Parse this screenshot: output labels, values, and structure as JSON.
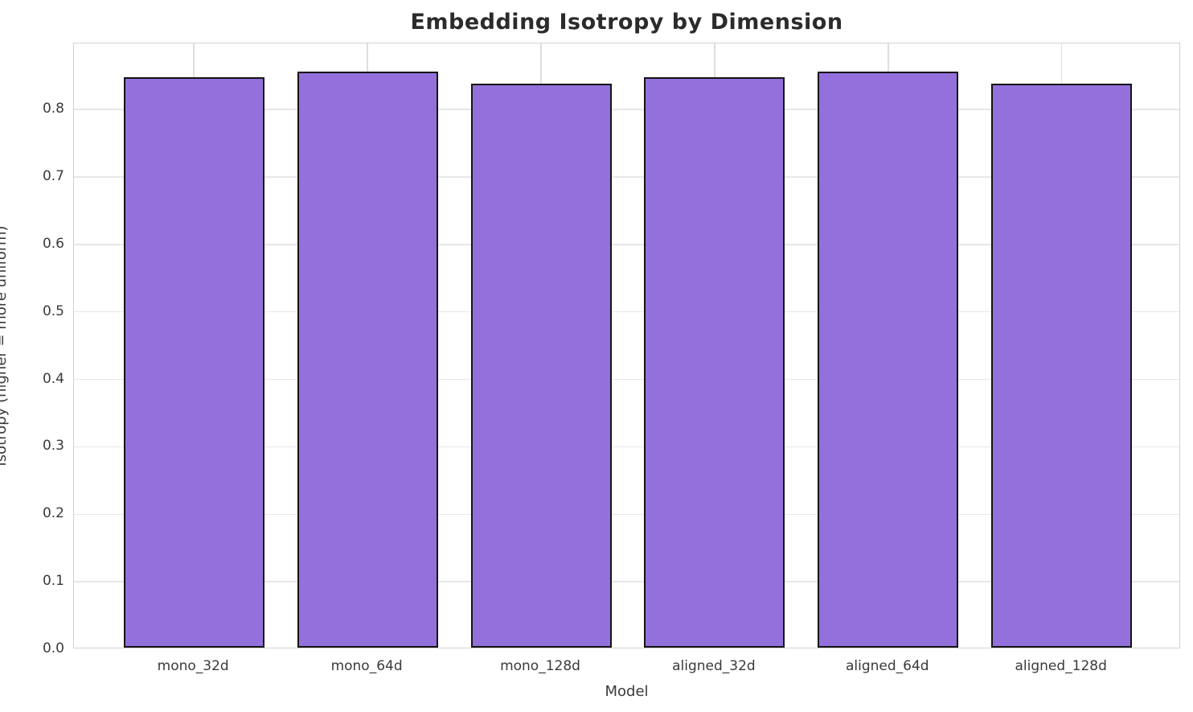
{
  "chart_data": {
    "type": "bar",
    "title": "Embedding Isotropy by Dimension",
    "xlabel": "Model",
    "ylabel": "Isotropy (higher = more uniform)",
    "categories": [
      "mono_32d",
      "mono_64d",
      "mono_128d",
      "aligned_32d",
      "aligned_64d",
      "aligned_128d"
    ],
    "values": [
      0.845,
      0.854,
      0.836,
      0.845,
      0.854,
      0.836
    ],
    "ylim": [
      0,
      0.898
    ],
    "yticks": [
      0.0,
      0.1,
      0.2,
      0.3,
      0.4,
      0.5,
      0.6,
      0.7,
      0.8
    ],
    "ytick_labels": [
      "0.0",
      "0.1",
      "0.2",
      "0.3",
      "0.4",
      "0.5",
      "0.6",
      "0.7",
      "0.8"
    ],
    "grid": true,
    "legend": null,
    "colors": {
      "bar_fill": "#9370db",
      "bar_edge": "#141414",
      "grid_horizontal": "#e7e7e7",
      "grid_vertical": "#dedede",
      "spine": "#d2d2d2",
      "title_text": "#2b2b2b",
      "tick_text": "#3a3a3a",
      "background": "#ffffff"
    }
  }
}
